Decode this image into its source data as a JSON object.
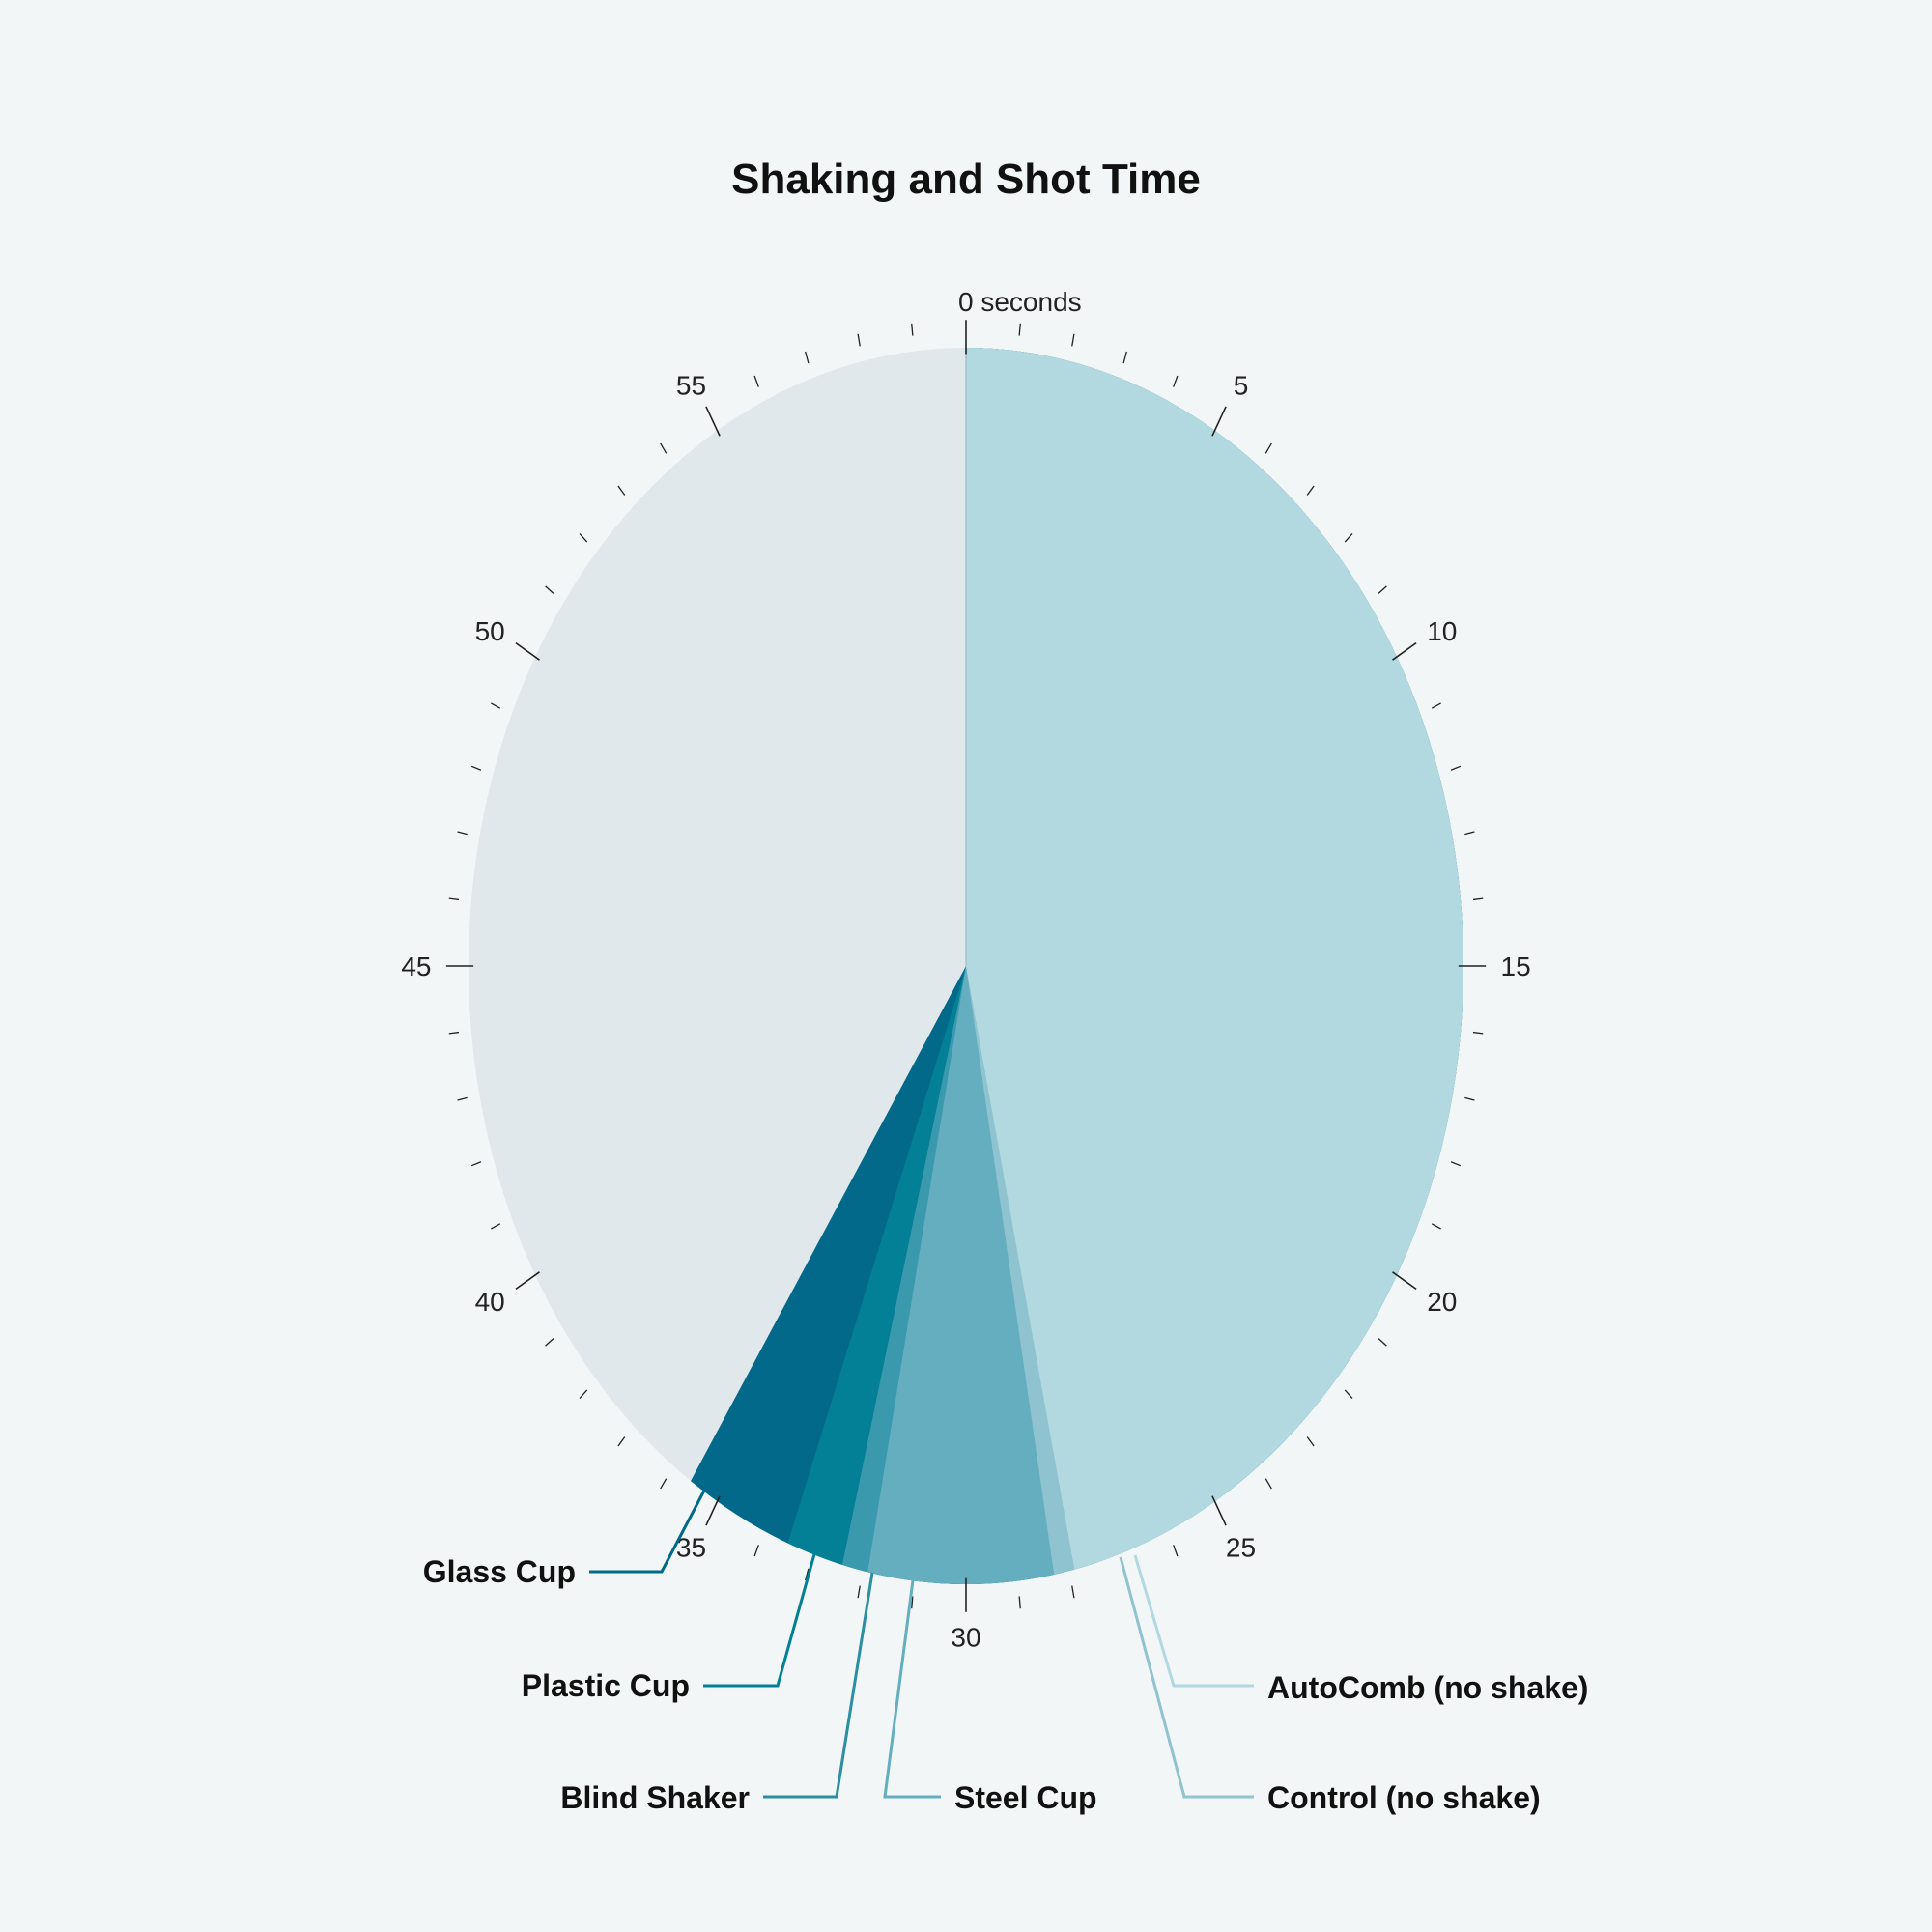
{
  "chart_data": {
    "type": "pie",
    "title": "Shaking and Shot Time",
    "unit_label": "0 seconds",
    "scale_max": 60,
    "tick_labels": [
      "5",
      "10",
      "15",
      "20",
      "25",
      "30",
      "35",
      "40",
      "45",
      "50",
      "55"
    ],
    "background_slice_color": "#e0e8eb",
    "series": [
      {
        "name": "AutoComb (no shake)",
        "end_time": 27.9,
        "color": "#b2d8e0",
        "leader_color": "#b2d8e0"
      },
      {
        "name": "Control (no shake)",
        "end_time": 28.3,
        "color": "#8ec3cf",
        "leader_color": "#8ec3cf"
      },
      {
        "name": "Steel Cup",
        "end_time": 31.9,
        "color": "#64aec0",
        "leader_color": "#64aec0"
      },
      {
        "name": "Blind Shaker",
        "end_time": 32.4,
        "color": "#3b99ae",
        "leader_color": "#2b8ea3"
      },
      {
        "name": "Plastic Cup",
        "end_time": 33.5,
        "color": "#037f96",
        "leader_color": "#037f96"
      },
      {
        "name": "Glass Cup",
        "end_time": 35.6,
        "color": "#02698a",
        "leader_color": "#02698a"
      }
    ]
  }
}
